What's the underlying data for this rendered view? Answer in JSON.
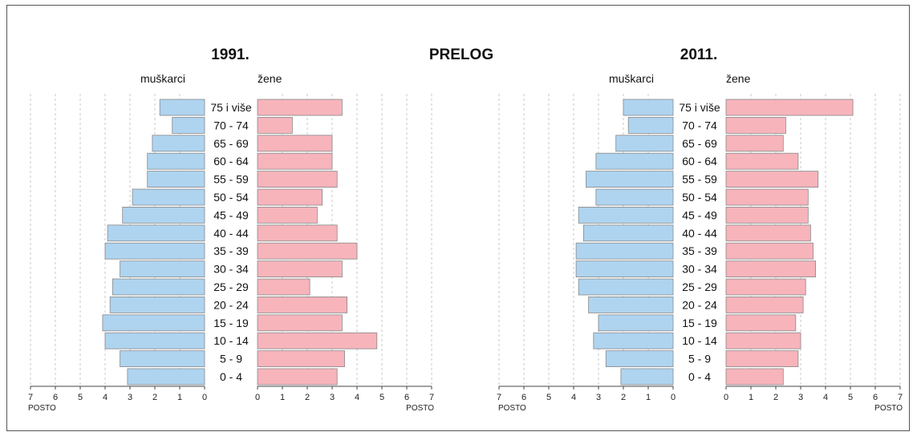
{
  "main_title": "PRELOG",
  "colors": {
    "male": "#aed4f0",
    "female": "#f7b4bb",
    "stroke": "#888888",
    "grid": "#bbbbbb"
  },
  "chart_data": [
    {
      "type": "bar",
      "subtype": "population-pyramid",
      "title": "1991.",
      "male_label": "muškarci",
      "female_label": "žene",
      "unit_label": "POSTO",
      "categories": [
        "75 i više",
        "70 - 74",
        "65 - 69",
        "60 - 64",
        "55 - 59",
        "50 - 54",
        "45 - 49",
        "40 - 44",
        "35 - 39",
        "30 - 34",
        "25 - 29",
        "20 - 24",
        "15 - 19",
        "10 - 14",
        "5 - 9",
        "0 - 4"
      ],
      "series": [
        {
          "name": "muškarci",
          "values": [
            1.8,
            1.3,
            2.1,
            2.3,
            2.3,
            2.9,
            3.3,
            3.9,
            4.0,
            3.4,
            3.7,
            3.8,
            4.1,
            4.0,
            3.4,
            3.1
          ]
        },
        {
          "name": "žene",
          "values": [
            3.4,
            1.4,
            3.0,
            3.0,
            3.2,
            2.6,
            2.4,
            3.2,
            4.0,
            3.4,
            2.1,
            3.6,
            3.4,
            4.8,
            3.5,
            3.2
          ]
        }
      ],
      "xlim": [
        0,
        7
      ],
      "ticks": [
        "0",
        "1",
        "2",
        "3",
        "4",
        "5",
        "6",
        "7"
      ],
      "grid": true
    },
    {
      "type": "bar",
      "subtype": "population-pyramid",
      "title": "2011.",
      "male_label": "muškarci",
      "female_label": "žene",
      "unit_label": "POSTO",
      "categories": [
        "75 i više",
        "70 - 74",
        "65 - 69",
        "60 - 64",
        "55 - 59",
        "50 - 54",
        "45 - 49",
        "40 - 44",
        "35 - 39",
        "30 - 34",
        "25 - 29",
        "20 - 24",
        "15 - 19",
        "10 - 14",
        "5 - 9",
        "0 - 4"
      ],
      "series": [
        {
          "name": "muškarci",
          "values": [
            2.0,
            1.8,
            2.3,
            3.1,
            3.5,
            3.1,
            3.8,
            3.6,
            3.9,
            3.9,
            3.8,
            3.4,
            3.0,
            3.2,
            2.7,
            2.1
          ]
        },
        {
          "name": "žene",
          "values": [
            5.1,
            2.4,
            2.3,
            2.9,
            3.7,
            3.3,
            3.3,
            3.4,
            3.5,
            3.6,
            3.2,
            3.1,
            2.8,
            3.0,
            2.9,
            2.3
          ]
        }
      ],
      "xlim": [
        0,
        7
      ],
      "ticks": [
        "0",
        "1",
        "2",
        "3",
        "4",
        "5",
        "6",
        "7"
      ],
      "grid": true
    }
  ]
}
